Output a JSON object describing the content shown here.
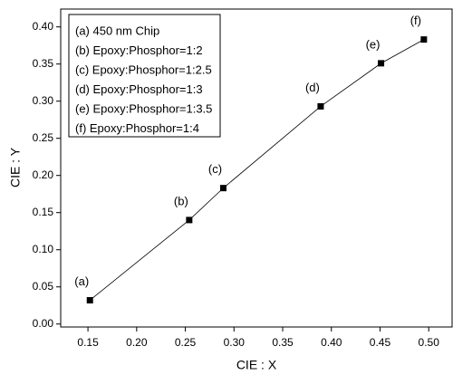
{
  "chart_data": {
    "type": "line",
    "xlabel": "CIE : X",
    "ylabel": "CIE : Y",
    "series": [
      {
        "x": [
          0.152,
          0.254,
          0.289,
          0.389,
          0.451,
          0.495
        ],
        "values": [
          0.032,
          0.14,
          0.183,
          0.293,
          0.351,
          0.383
        ],
        "color": "#000000"
      }
    ],
    "point_labels": [
      "(a)",
      "(b)",
      "(c)",
      "(d)",
      "(e)",
      "(f)"
    ],
    "legend_entries": [
      "(a) 450 nm Chip",
      "(b) Epoxy:Phosphor=1:2",
      "(c) Epoxy:Phosphor=1:2.5",
      "(d) Epoxy:Phosphor=1:3",
      "(e) Epoxy:Phosphor=1:3.5",
      "(f) Epoxy:Phosphor=1:4"
    ],
    "xlim": [
      0.122,
      0.524
    ],
    "xticks": [
      0.15,
      {
        "value": 0.2,
        "label": "0.20"
      },
      0.25,
      {
        "value": 0.3,
        "label": "0.30"
      },
      0.35,
      {
        "value": 0.4,
        "label": "0.40"
      },
      0.45,
      {
        "value": 0.5,
        "label": "0.50"
      }
    ],
    "ylim": [
      -0.004,
      0.424
    ],
    "yticks": [
      {
        "value": 0,
        "label": "0.00"
      },
      0.05,
      {
        "value": 0.1,
        "label": "0.10"
      },
      0.15,
      {
        "value": 0.2,
        "label": "0.20"
      },
      0.25,
      {
        "value": 0.3,
        "label": "0.30"
      },
      0.35,
      {
        "value": 0.4,
        "label": "0.40"
      }
    ]
  }
}
